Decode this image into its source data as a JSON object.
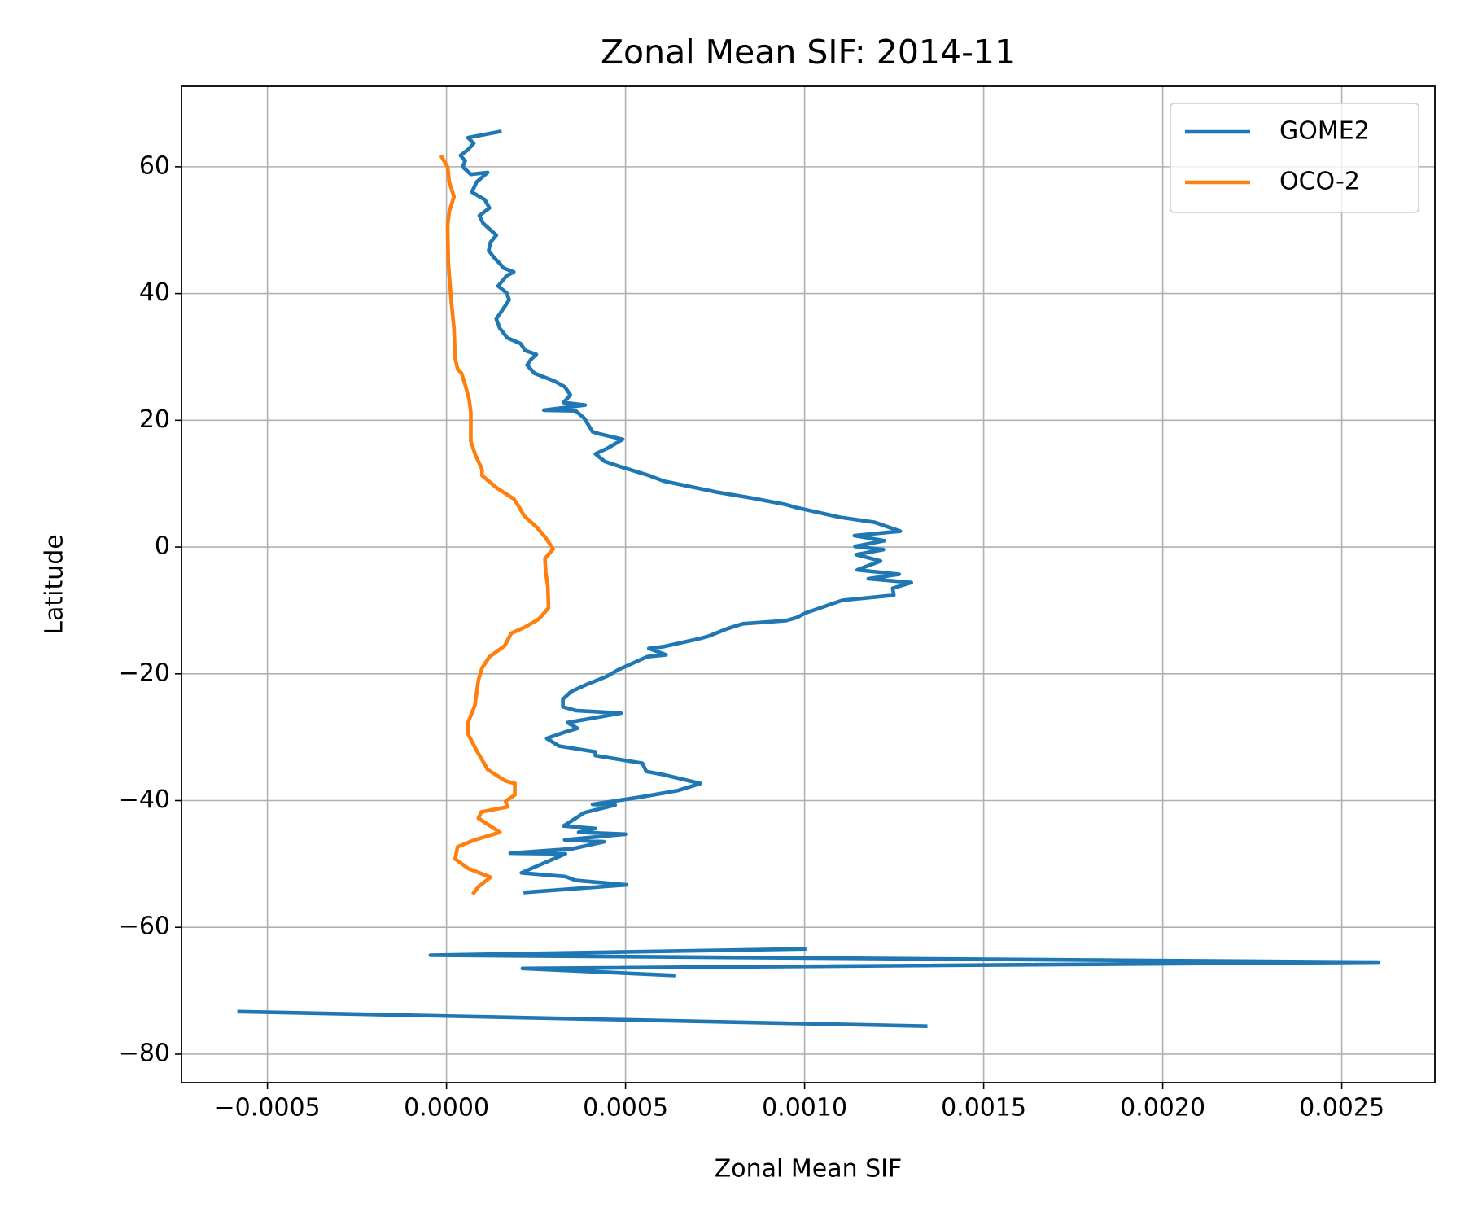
{
  "chart_data": {
    "type": "line",
    "title": "Zonal Mean SIF: 2014-11",
    "xlabel": "Zonal Mean SIF",
    "ylabel": "Latitude",
    "xlim": [
      -0.00074,
      0.00276
    ],
    "ylim": [
      -84.5,
      72.7
    ],
    "xticks": [
      {
        "value": -0.0005,
        "label": "−0.0005"
      },
      {
        "value": 0,
        "label": "0.0000"
      },
      {
        "value": 0.0005,
        "label": "0.0005"
      },
      {
        "value": 0.001,
        "label": "0.0010"
      },
      {
        "value": 0.0015,
        "label": "0.0015"
      },
      {
        "value": 0.002,
        "label": "0.0020"
      },
      {
        "value": 0.0025,
        "label": "0.0025"
      }
    ],
    "yticks": [
      {
        "value": -80,
        "label": "−80"
      },
      {
        "value": -60,
        "label": "−60"
      },
      {
        "value": -40,
        "label": "−40"
      },
      {
        "value": -20,
        "label": "−20"
      },
      0,
      20,
      40,
      60
    ],
    "grid": true,
    "legend": "upper right",
    "series": [
      {
        "name": "GOME2",
        "color": "#1f77b4",
        "x": [
          0.000154,
          6e-05,
          7.6e-05,
          6e-05,
          3.9e-05,
          5.2e-05,
          4.5e-05,
          6.8e-05,
          0.000115,
          8.4e-05,
          7.1e-05,
          0.000107,
          0.00012,
          9.2e-05,
          0.000102,
          0.000139,
          0.000123,
          0.000118,
          0.000131,
          0.000149,
          0.00016,
          0.000188,
          0.000168,
          0.000144,
          0.000168,
          0.000175,
          0.000162,
          0.000139,
          0.000149,
          0.00017,
          0.000207,
          0.00022,
          0.000251,
          0.000236,
          0.000225,
          0.000246,
          0.000301,
          0.00033,
          0.000346,
          0.000327,
          0.000387,
          0.000272,
          0.000361,
          0.000385,
          0.000408,
          0.000424,
          0.000492,
          0.00045,
          0.000416,
          0.000442,
          0.00049,
          0.000565,
          0.000607,
          0.000751,
          0.000856,
          0.000948,
          0.000979,
          0.001099,
          0.001196,
          0.001267,
          0.001139,
          0.001223,
          0.001141,
          0.00122,
          0.001144,
          0.001212,
          0.001147,
          0.001264,
          0.001178,
          0.001298,
          0.001246,
          0.001249,
          0.001105,
          0.001003,
          0.000979,
          0.000948,
          0.000827,
          0.000783,
          0.00073,
          0.000702,
          0.000607,
          0.000565,
          0.000613,
          0.00056,
          0.000482,
          0.000448,
          0.000395,
          0.000348,
          0.000325,
          0.000325,
          0.000361,
          0.000487,
          0.000338,
          0.000366,
          0.00033,
          0.00028,
          0.000314,
          0.000416,
          0.000416,
          0.000547,
          0.000558,
          0.000605,
          0.000709,
          0.000647,
          0.000547,
          0.000408,
          0.000471,
          0.000385,
          0.000327,
          0.000416,
          0.000369,
          0.0005,
          0.00033,
          0.00044,
          0.000351,
          0.000178,
          0.000332,
          0.000209,
          0.000332,
          0.000361,
          0.000503,
          0.000215,
          null,
          0.001005,
          -4.5e-05,
          0.002602,
          0.000212,
          0.000639,
          null,
          -0.000584,
          0.001343
        ],
        "values": [
          65.6,
          64.6,
          63.7,
          62.7,
          61.8,
          60.9,
          60.0,
          58.8,
          59.1,
          57.6,
          56.0,
          54.8,
          53.5,
          52.3,
          51.1,
          49.2,
          48.1,
          46.8,
          45.8,
          44.7,
          44.0,
          43.4,
          42.8,
          41.2,
          40.1,
          39.0,
          37.9,
          36.0,
          34.5,
          33.0,
          32.1,
          31.0,
          30.4,
          29.6,
          28.7,
          27.4,
          26.2,
          25.3,
          24.0,
          22.8,
          22.4,
          21.6,
          21.5,
          20.3,
          18.2,
          17.9,
          17.0,
          15.6,
          14.7,
          13.5,
          12.6,
          11.3,
          10.4,
          8.7,
          7.7,
          6.7,
          6.2,
          4.7,
          3.9,
          2.5,
          1.8,
          1.0,
          0.1,
          -0.4,
          -1.2,
          -2.2,
          -3.6,
          -4.3,
          -5.0,
          -5.6,
          -6.5,
          -7.6,
          -8.4,
          -10.4,
          -11.1,
          -11.6,
          -12.1,
          -12.9,
          -14.1,
          -14.5,
          -15.7,
          -16.0,
          -17.0,
          -17.3,
          -19.3,
          -20.4,
          -21.6,
          -22.8,
          -24.0,
          -25.2,
          -25.8,
          -26.2,
          -27.7,
          -28.6,
          -29.2,
          -30.2,
          -31.4,
          -32.3,
          -32.9,
          -34.1,
          -35.4,
          -35.9,
          -37.3,
          -38.4,
          -39.4,
          -40.6,
          -40.7,
          -41.9,
          -44.0,
          -44.4,
          -45.0,
          -45.3,
          -46.2,
          -46.5,
          -47.6,
          -48.3,
          -48.4,
          -51.4,
          -52.0,
          -52.6,
          -53.3,
          -54.5,
          null,
          -63.4,
          -64.4,
          -65.5,
          -66.5,
          -67.6,
          null,
          -73.3,
          -75.6
        ]
      },
      {
        "name": "OCO-2",
        "color": "#ff7f0e",
        "x": [
          -1.6e-05,
          3e-06,
          8e-06,
          2.1e-05,
          8e-06,
          3e-06,
          5e-06,
          1.3e-05,
          2.1e-05,
          2.4e-05,
          3.1e-05,
          4.2e-05,
          5.2e-05,
          6.3e-05,
          6.8e-05,
          6.8e-05,
          8.1e-05,
          9.9e-05,
          9.9e-05,
          0.000141,
          0.000188,
          0.000202,
          0.000217,
          0.000233,
          0.000254,
          0.000275,
          0.000298,
          0.000275,
          0.000277,
          0.000283,
          0.000285,
          0.000257,
          0.00022,
          0.000181,
          0.000162,
          0.00012,
          9.9e-05,
          8.9e-05,
          7.9e-05,
          6e-05,
          6e-05,
          8.4e-05,
          0.000115,
          0.000165,
          0.000191,
          0.000191,
          0.000165,
          0.00017,
          9.7e-05,
          8.9e-05,
          0.000149,
          7.9e-05,
          3.1e-05,
          2.4e-05,
          6e-05,
          0.000123,
          8.9e-05,
          7.3e-05
        ],
        "values": [
          61.8,
          60.0,
          57.5,
          55.3,
          53.0,
          50.8,
          44.9,
          39.0,
          34.5,
          29.8,
          28.1,
          27.4,
          25.6,
          23.4,
          21.2,
          16.7,
          14.5,
          12.3,
          11.3,
          9.3,
          7.6,
          6.4,
          4.9,
          4.1,
          3.0,
          1.6,
          -0.3,
          -1.8,
          -4.0,
          -6.2,
          -9.6,
          -11.4,
          -12.6,
          -13.6,
          -15.6,
          -17.3,
          -19.1,
          -21.0,
          -25.0,
          -27.7,
          -29.5,
          -32.1,
          -35.1,
          -36.9,
          -37.3,
          -39.1,
          -40.1,
          -41.0,
          -41.8,
          -42.8,
          -45.0,
          -46.2,
          -47.3,
          -49.2,
          -50.7,
          -52.1,
          -53.6,
          -54.8
        ]
      }
    ]
  }
}
